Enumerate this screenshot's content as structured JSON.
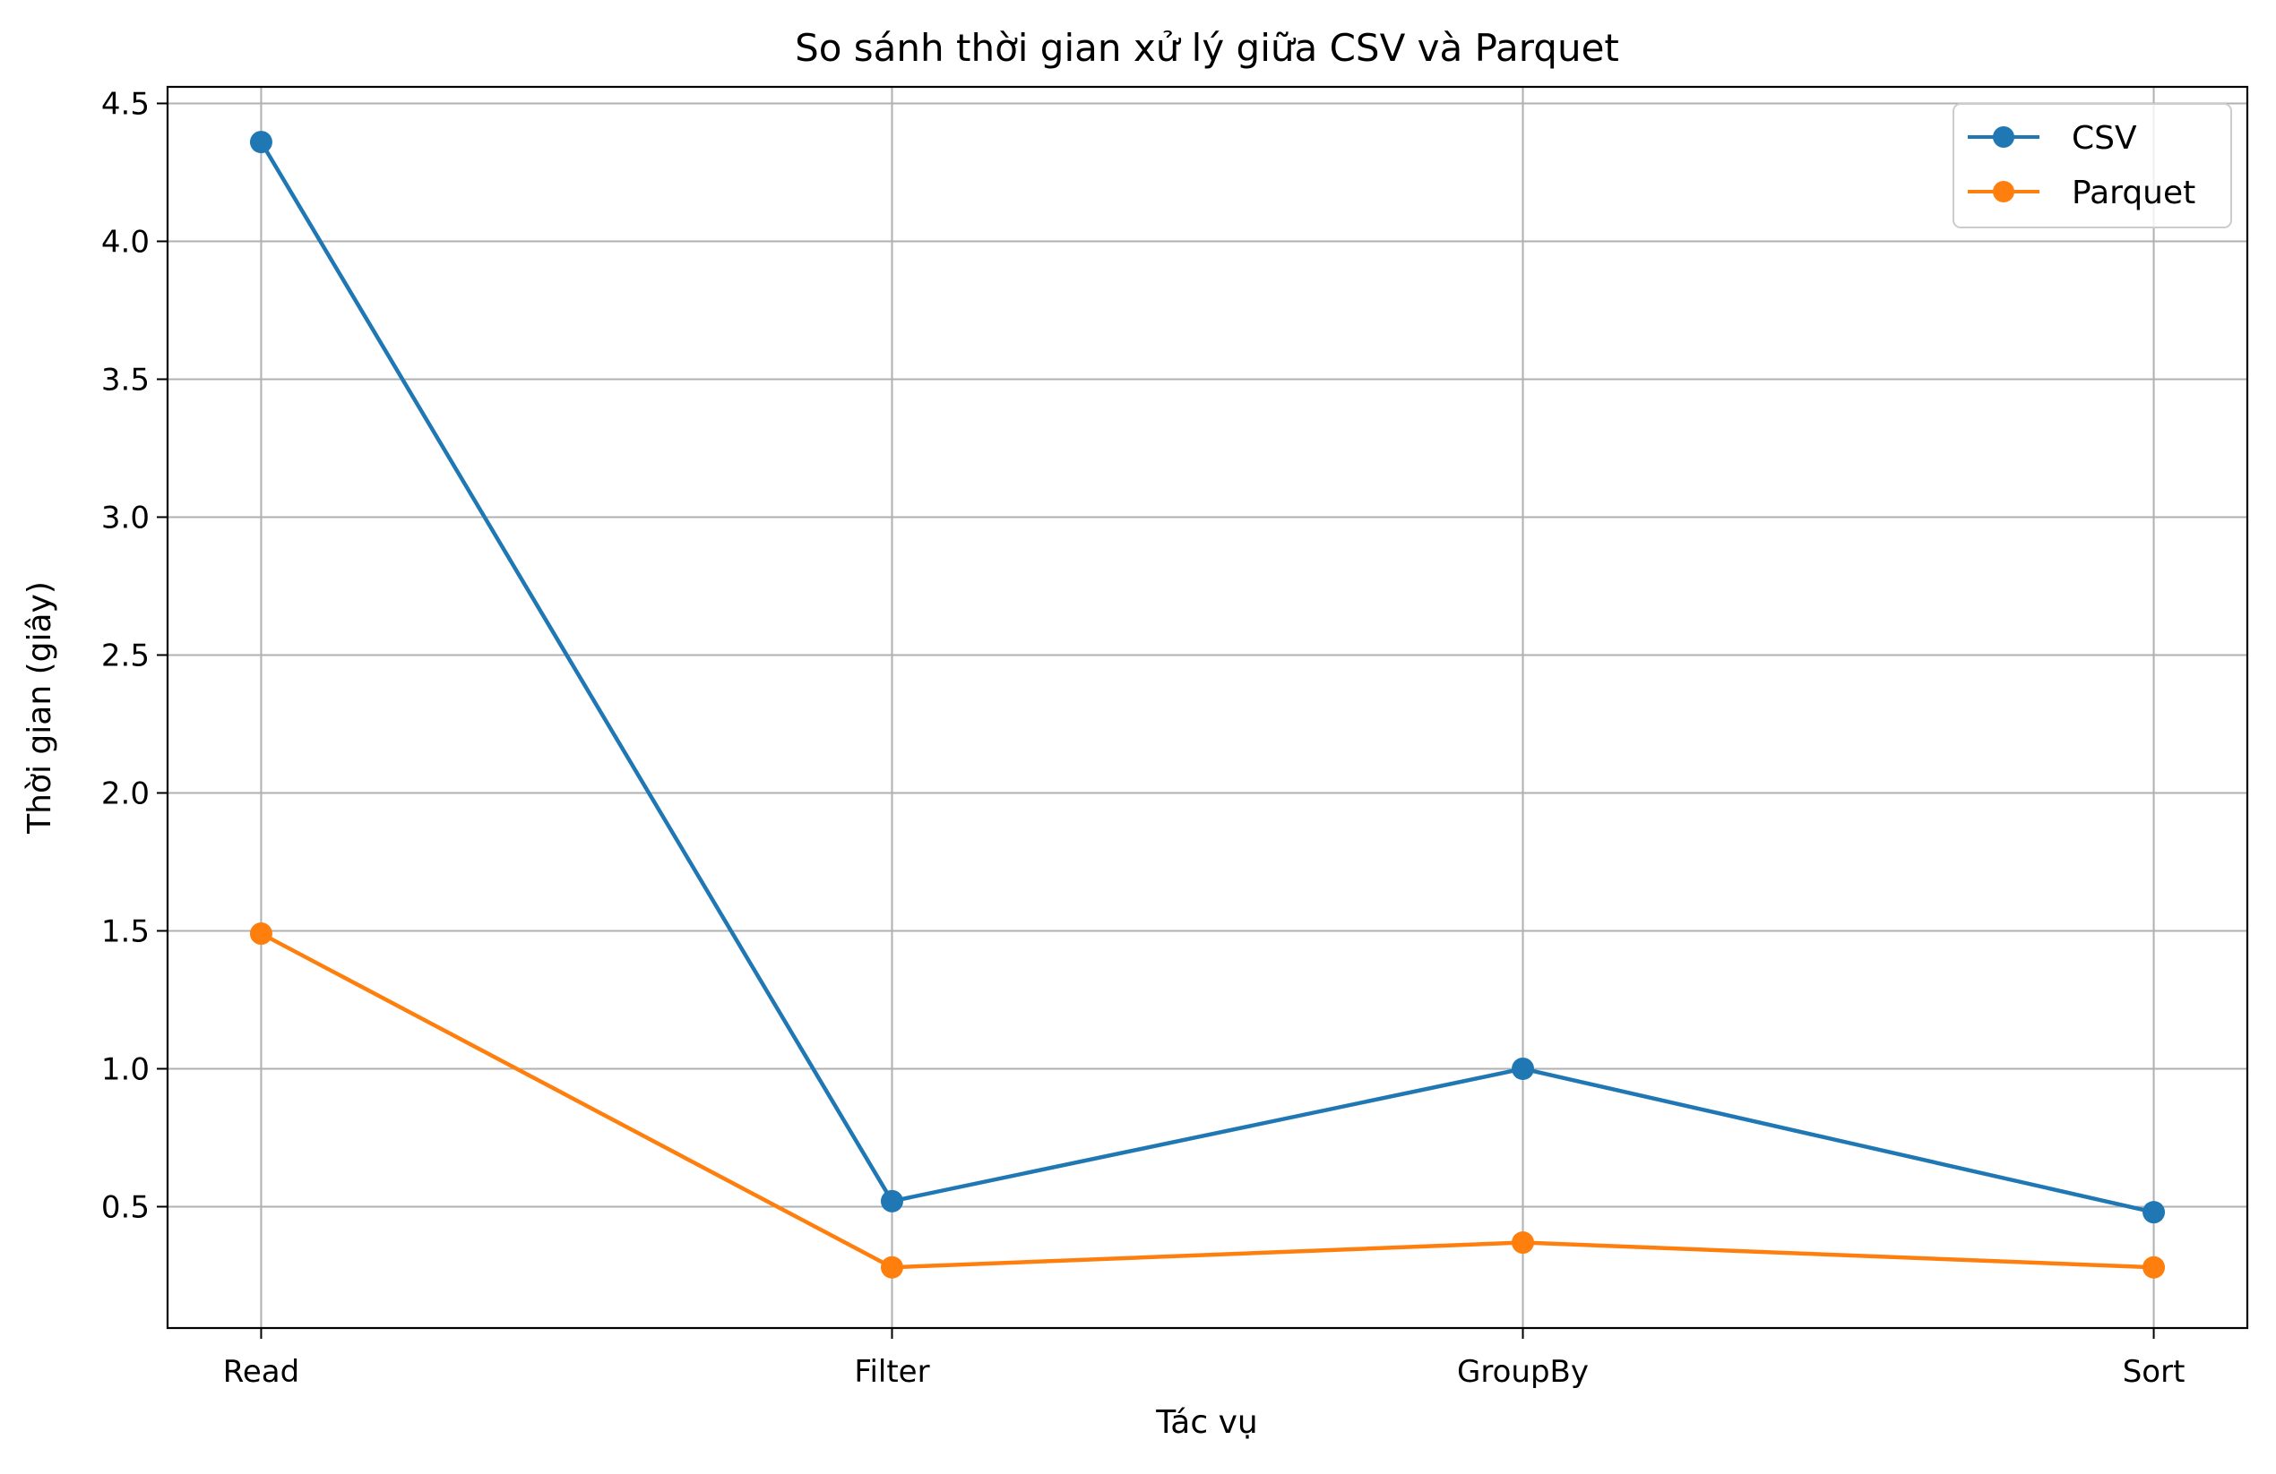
{
  "chart_data": {
    "type": "line",
    "title": "So sánh thời gian xử lý giữa CSV và Parquet",
    "xlabel": "Tác vụ",
    "ylabel": "Thời gian (giây)",
    "categories": [
      "Read",
      "Filter",
      "GroupBy",
      "Sort"
    ],
    "series": [
      {
        "name": "CSV",
        "color": "#1f77b4",
        "values": [
          4.36,
          0.52,
          1.0,
          0.48
        ]
      },
      {
        "name": "Parquet",
        "color": "#ff7f0e",
        "values": [
          1.49,
          0.28,
          0.37,
          0.28
        ]
      }
    ],
    "ylim": [
      0.06,
      4.56
    ],
    "yticks": [
      "0.5",
      "1.0",
      "1.5",
      "2.0",
      "2.5",
      "3.0",
      "3.5",
      "4.0",
      "4.5"
    ],
    "grid": true,
    "legend_position": "top-right",
    "marker": "circle"
  }
}
